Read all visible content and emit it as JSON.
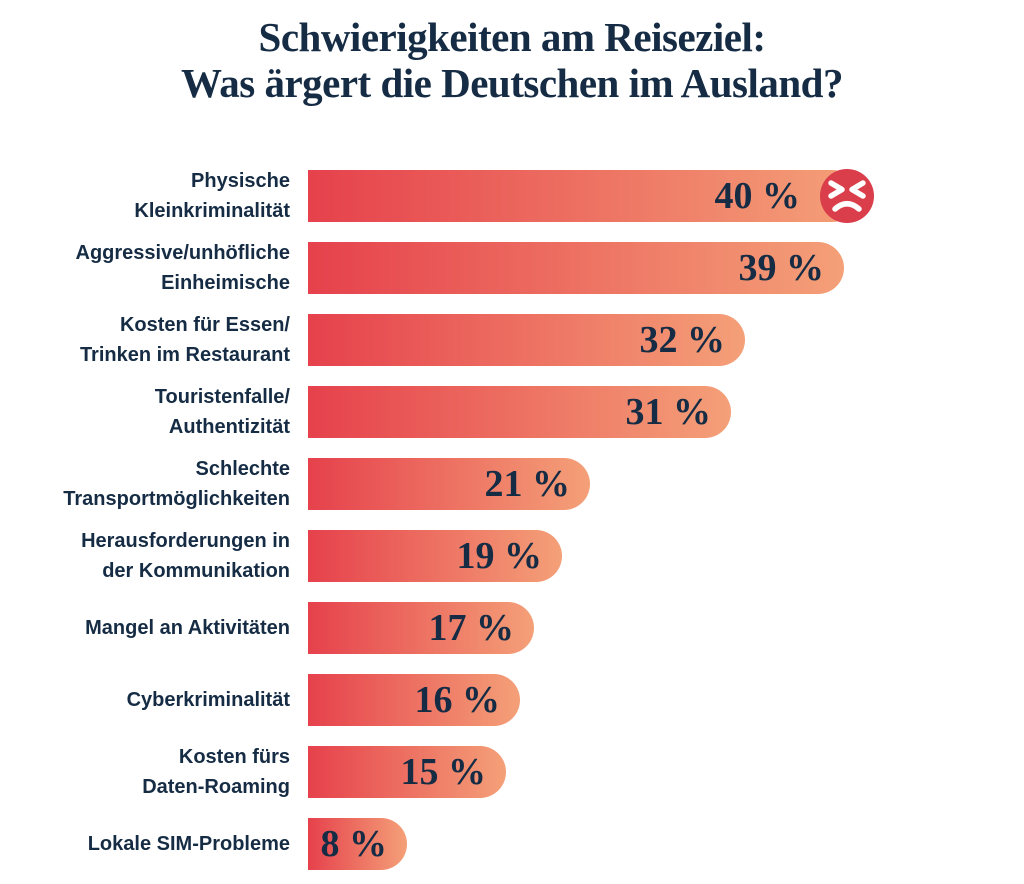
{
  "header": {
    "title_lines": [
      "Schwierigkeiten am Reiseziel:",
      "Was ärgert die Deutschen im Ausland?"
    ]
  },
  "chart_data": {
    "type": "bar",
    "orientation": "horizontal",
    "title": "Schwierigkeiten am Reiseziel: Was ärgert die Deutschen im Ausland?",
    "unit": "%",
    "xlim": [
      0,
      40
    ],
    "grid": false,
    "legend": false,
    "value_label_position": "inside-right",
    "bars": [
      {
        "label": "Physische\nKleinkriminalität",
        "value": 40,
        "value_label": "40 %",
        "annotation": "angry-face-emoji"
      },
      {
        "label": "Aggressive/unhöfliche\nEinheimische",
        "value": 39,
        "value_label": "39 %"
      },
      {
        "label": "Kosten für Essen/\nTrinken im Restaurant",
        "value": 32,
        "value_label": "32 %"
      },
      {
        "label": "Touristenfalle/\nAuthentizität",
        "value": 31,
        "value_label": "31 %"
      },
      {
        "label": "Schlechte\nTransportmöglichkeiten",
        "value": 21,
        "value_label": "21 %"
      },
      {
        "label": "Herausforderungen in\nder Kommunikation",
        "value": 19,
        "value_label": "19 %"
      },
      {
        "label": "Mangel an Aktivitäten",
        "value": 17,
        "value_label": "17 %"
      },
      {
        "label": "Cyberkriminalität",
        "value": 16,
        "value_label": "16 %"
      },
      {
        "label": "Kosten fürs\nDaten-Roaming",
        "value": 15,
        "value_label": "15 %"
      },
      {
        "label": "Lokale SIM-Probleme",
        "value": 8,
        "value_label": "8 %"
      }
    ],
    "colors": {
      "bar_gradient_start": "#e6414c",
      "bar_gradient_end": "#f4a078",
      "text_navy": "#152c44",
      "emoji_red": "#da3e4a",
      "emoji_face_strokes": "#ffffff",
      "background": "#ffffff"
    }
  }
}
